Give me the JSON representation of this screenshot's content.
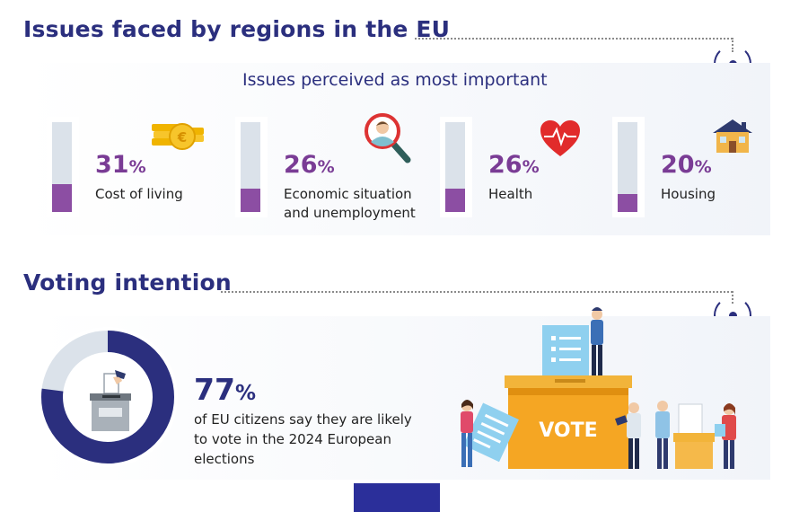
{
  "issues_section": {
    "title": "Issues faced by regions in the EU",
    "subtitle": "Issues perceived as most important",
    "accent_color": "#8c4ea3",
    "items": [
      {
        "value": 31,
        "pct_number": "31",
        "pct_unit": "%",
        "label_lines": [
          "Cost of living"
        ],
        "icon": "euro-coins-icon"
      },
      {
        "value": 26,
        "pct_number": "26",
        "pct_unit": "%",
        "label_lines": [
          "Economic situation",
          "and unemployment"
        ],
        "icon": "magnifier-person-icon"
      },
      {
        "value": 26,
        "pct_number": "26",
        "pct_unit": "%",
        "label_lines": [
          "Health"
        ],
        "icon": "heart-pulse-icon"
      },
      {
        "value": 20,
        "pct_number": "20",
        "pct_unit": "%",
        "label_lines": [
          "Housing"
        ],
        "icon": "house-icon"
      }
    ]
  },
  "voting_section": {
    "title": "Voting intention",
    "value": 77,
    "pct_number": "77",
    "pct_unit": "%",
    "description_lines": [
      "of EU citizens say they are likely",
      "to vote in the 2024 European",
      "elections"
    ],
    "ring_color": "#2b2f7e",
    "illustration_word": "VOTE",
    "icons": [
      "ballot-box-icon",
      "voting-illustration"
    ]
  }
}
